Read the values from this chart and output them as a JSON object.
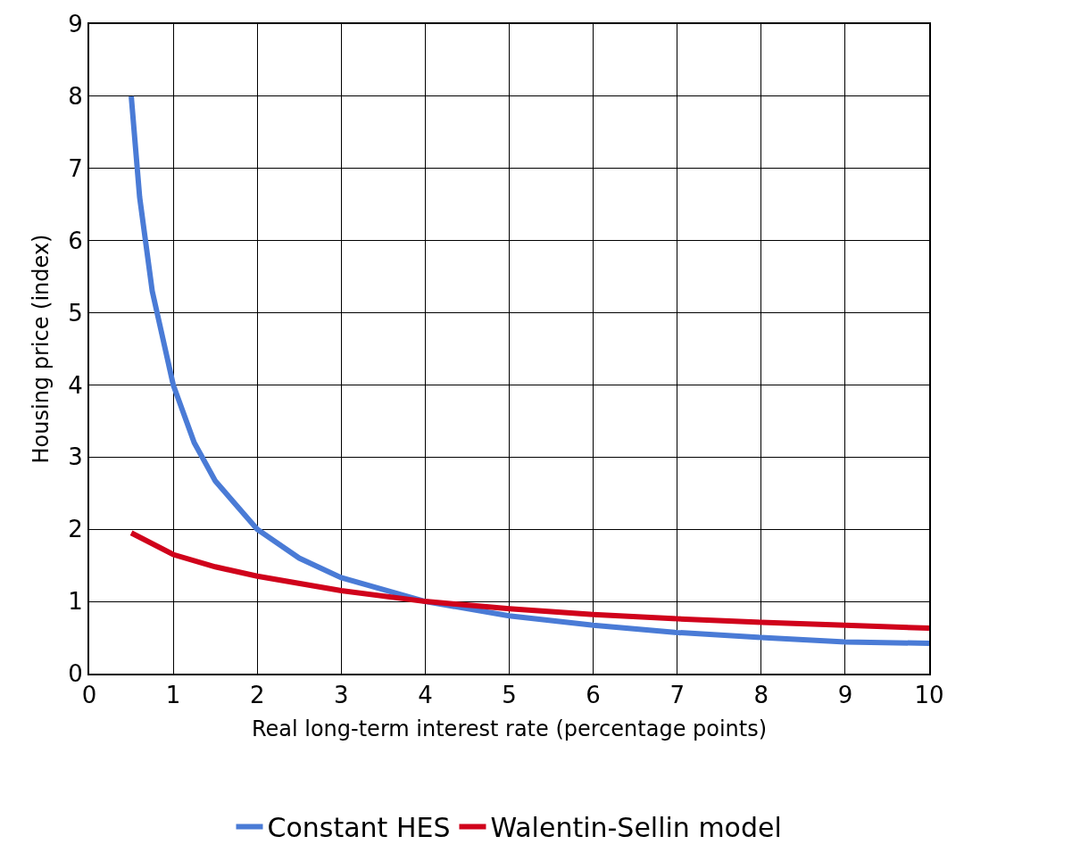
{
  "chart_data": {
    "type": "line",
    "xlabel": "Real long-term interest rate (percentage points)",
    "ylabel": "Housing price (index)",
    "xlim": [
      0,
      10
    ],
    "xticks": [
      0,
      1,
      2,
      3,
      4,
      5,
      6,
      7,
      8,
      9,
      10
    ],
    "ylim": [
      0,
      9
    ],
    "yticks": [
      0,
      1,
      2,
      3,
      4,
      5,
      6,
      7,
      8,
      9
    ],
    "grid": true,
    "legend": "bottom",
    "marker": "none",
    "line_style": "solid",
    "series": [
      {
        "name": "Constant HES",
        "color": "#4a7bd6",
        "x": [
          0.5,
          0.6,
          0.75,
          1,
          1.25,
          1.5,
          2,
          2.5,
          3,
          4,
          5,
          6,
          7,
          8,
          9,
          10
        ],
        "values": [
          8,
          6.6,
          5.3,
          4,
          3.2,
          2.67,
          2,
          1.6,
          1.33,
          1,
          0.8,
          0.67,
          0.57,
          0.5,
          0.44,
          0.42
        ]
      },
      {
        "name": "Walentin-Sellin model",
        "color": "#d0021b",
        "x": [
          0.5,
          1,
          1.5,
          2,
          3,
          4,
          5,
          6,
          7,
          8,
          9,
          10
        ],
        "values": [
          1.95,
          1.65,
          1.48,
          1.35,
          1.15,
          1.0,
          0.9,
          0.82,
          0.76,
          0.71,
          0.67,
          0.63
        ]
      }
    ]
  }
}
